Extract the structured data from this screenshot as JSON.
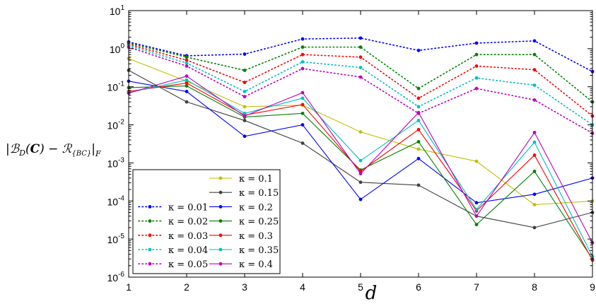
{
  "chart_data": {
    "type": "line",
    "title": "",
    "xlabel": "d",
    "ylabel": "|B_D(C) − R_{BC}|_F",
    "x": [
      1,
      2,
      3,
      4,
      5,
      6,
      7,
      8,
      9
    ],
    "xlim": [
      1,
      9
    ],
    "ylim": [
      1e-06,
      10
    ],
    "yscale": "log",
    "x_ticks": [
      "1",
      "2",
      "3",
      "4",
      "5",
      "6",
      "7",
      "8",
      "9"
    ],
    "y_ticks": [
      {
        "base": "10",
        "exp": "-6"
      },
      {
        "base": "10",
        "exp": "-5"
      },
      {
        "base": "10",
        "exp": "-4"
      },
      {
        "base": "10",
        "exp": "-3"
      },
      {
        "base": "10",
        "exp": "-2"
      },
      {
        "base": "10",
        "exp": "-1"
      },
      {
        "base": "10",
        "exp": "0"
      },
      {
        "base": "10",
        "exp": "1"
      }
    ],
    "grid": false,
    "legend_position": "bottom-left",
    "series": [
      {
        "name": "κ = 0.01",
        "style": "dotted",
        "color": "#0000ff",
        "values": [
          1.5,
          0.65,
          0.72,
          1.8,
          1.9,
          0.9,
          1.4,
          1.6,
          0.25
        ]
      },
      {
        "name": "κ = 0.02",
        "style": "dotted",
        "color": "#008000",
        "values": [
          1.4,
          0.6,
          0.27,
          1.1,
          1.1,
          0.09,
          0.7,
          0.7,
          0.04
        ]
      },
      {
        "name": "κ = 0.03",
        "style": "dotted",
        "color": "#ff0000",
        "values": [
          1.3,
          0.5,
          0.13,
          0.7,
          0.6,
          0.05,
          0.35,
          0.28,
          0.017
        ]
      },
      {
        "name": "κ = 0.04",
        "style": "dotted",
        "color": "#00bfbf",
        "values": [
          1.2,
          0.42,
          0.075,
          0.45,
          0.32,
          0.03,
          0.17,
          0.11,
          0.01
        ]
      },
      {
        "name": "κ = 0.05",
        "style": "dotted",
        "color": "#bf00bf",
        "values": [
          1.1,
          0.35,
          0.055,
          0.3,
          0.18,
          0.02,
          0.09,
          0.045,
          0.006
        ]
      },
      {
        "name": "κ = 0.1",
        "style": "solid",
        "color": "#bfbf00",
        "values": [
          0.55,
          0.14,
          0.03,
          0.033,
          0.0065,
          0.0023,
          0.0011,
          8e-05,
          0.0001
        ]
      },
      {
        "name": "κ = 0.15",
        "style": "solid",
        "color": "#404040",
        "values": [
          0.27,
          0.04,
          0.013,
          0.0033,
          0.00031,
          0.00026,
          4e-05,
          2e-05,
          5e-05
        ]
      },
      {
        "name": "κ = 0.2",
        "style": "solid",
        "color": "#0000ff",
        "values": [
          0.14,
          0.075,
          0.005,
          0.01,
          0.00011,
          0.0013,
          9e-05,
          0.00015,
          0.0004
        ]
      },
      {
        "name": "κ = 0.25",
        "style": "solid",
        "color": "#008000",
        "values": [
          0.095,
          0.105,
          0.016,
          0.02,
          0.00065,
          0.0036,
          2.4e-05,
          0.0006,
          3e-06
        ]
      },
      {
        "name": "κ = 0.3",
        "style": "solid",
        "color": "#ff0000",
        "values": [
          0.075,
          0.125,
          0.018,
          0.034,
          0.0006,
          0.0075,
          5.5e-05,
          0.0016,
          2.8e-06
        ]
      },
      {
        "name": "κ = 0.35",
        "style": "solid",
        "color": "#00bfbf",
        "values": [
          0.07,
          0.15,
          0.02,
          0.05,
          0.00115,
          0.013,
          6e-05,
          0.0035,
          3.5e-06
        ]
      },
      {
        "name": "κ = 0.4",
        "style": "solid",
        "color": "#bf00bf",
        "values": [
          0.068,
          0.19,
          0.017,
          0.07,
          0.00052,
          0.021,
          4e-05,
          0.0063,
          8e-06
        ]
      }
    ]
  }
}
